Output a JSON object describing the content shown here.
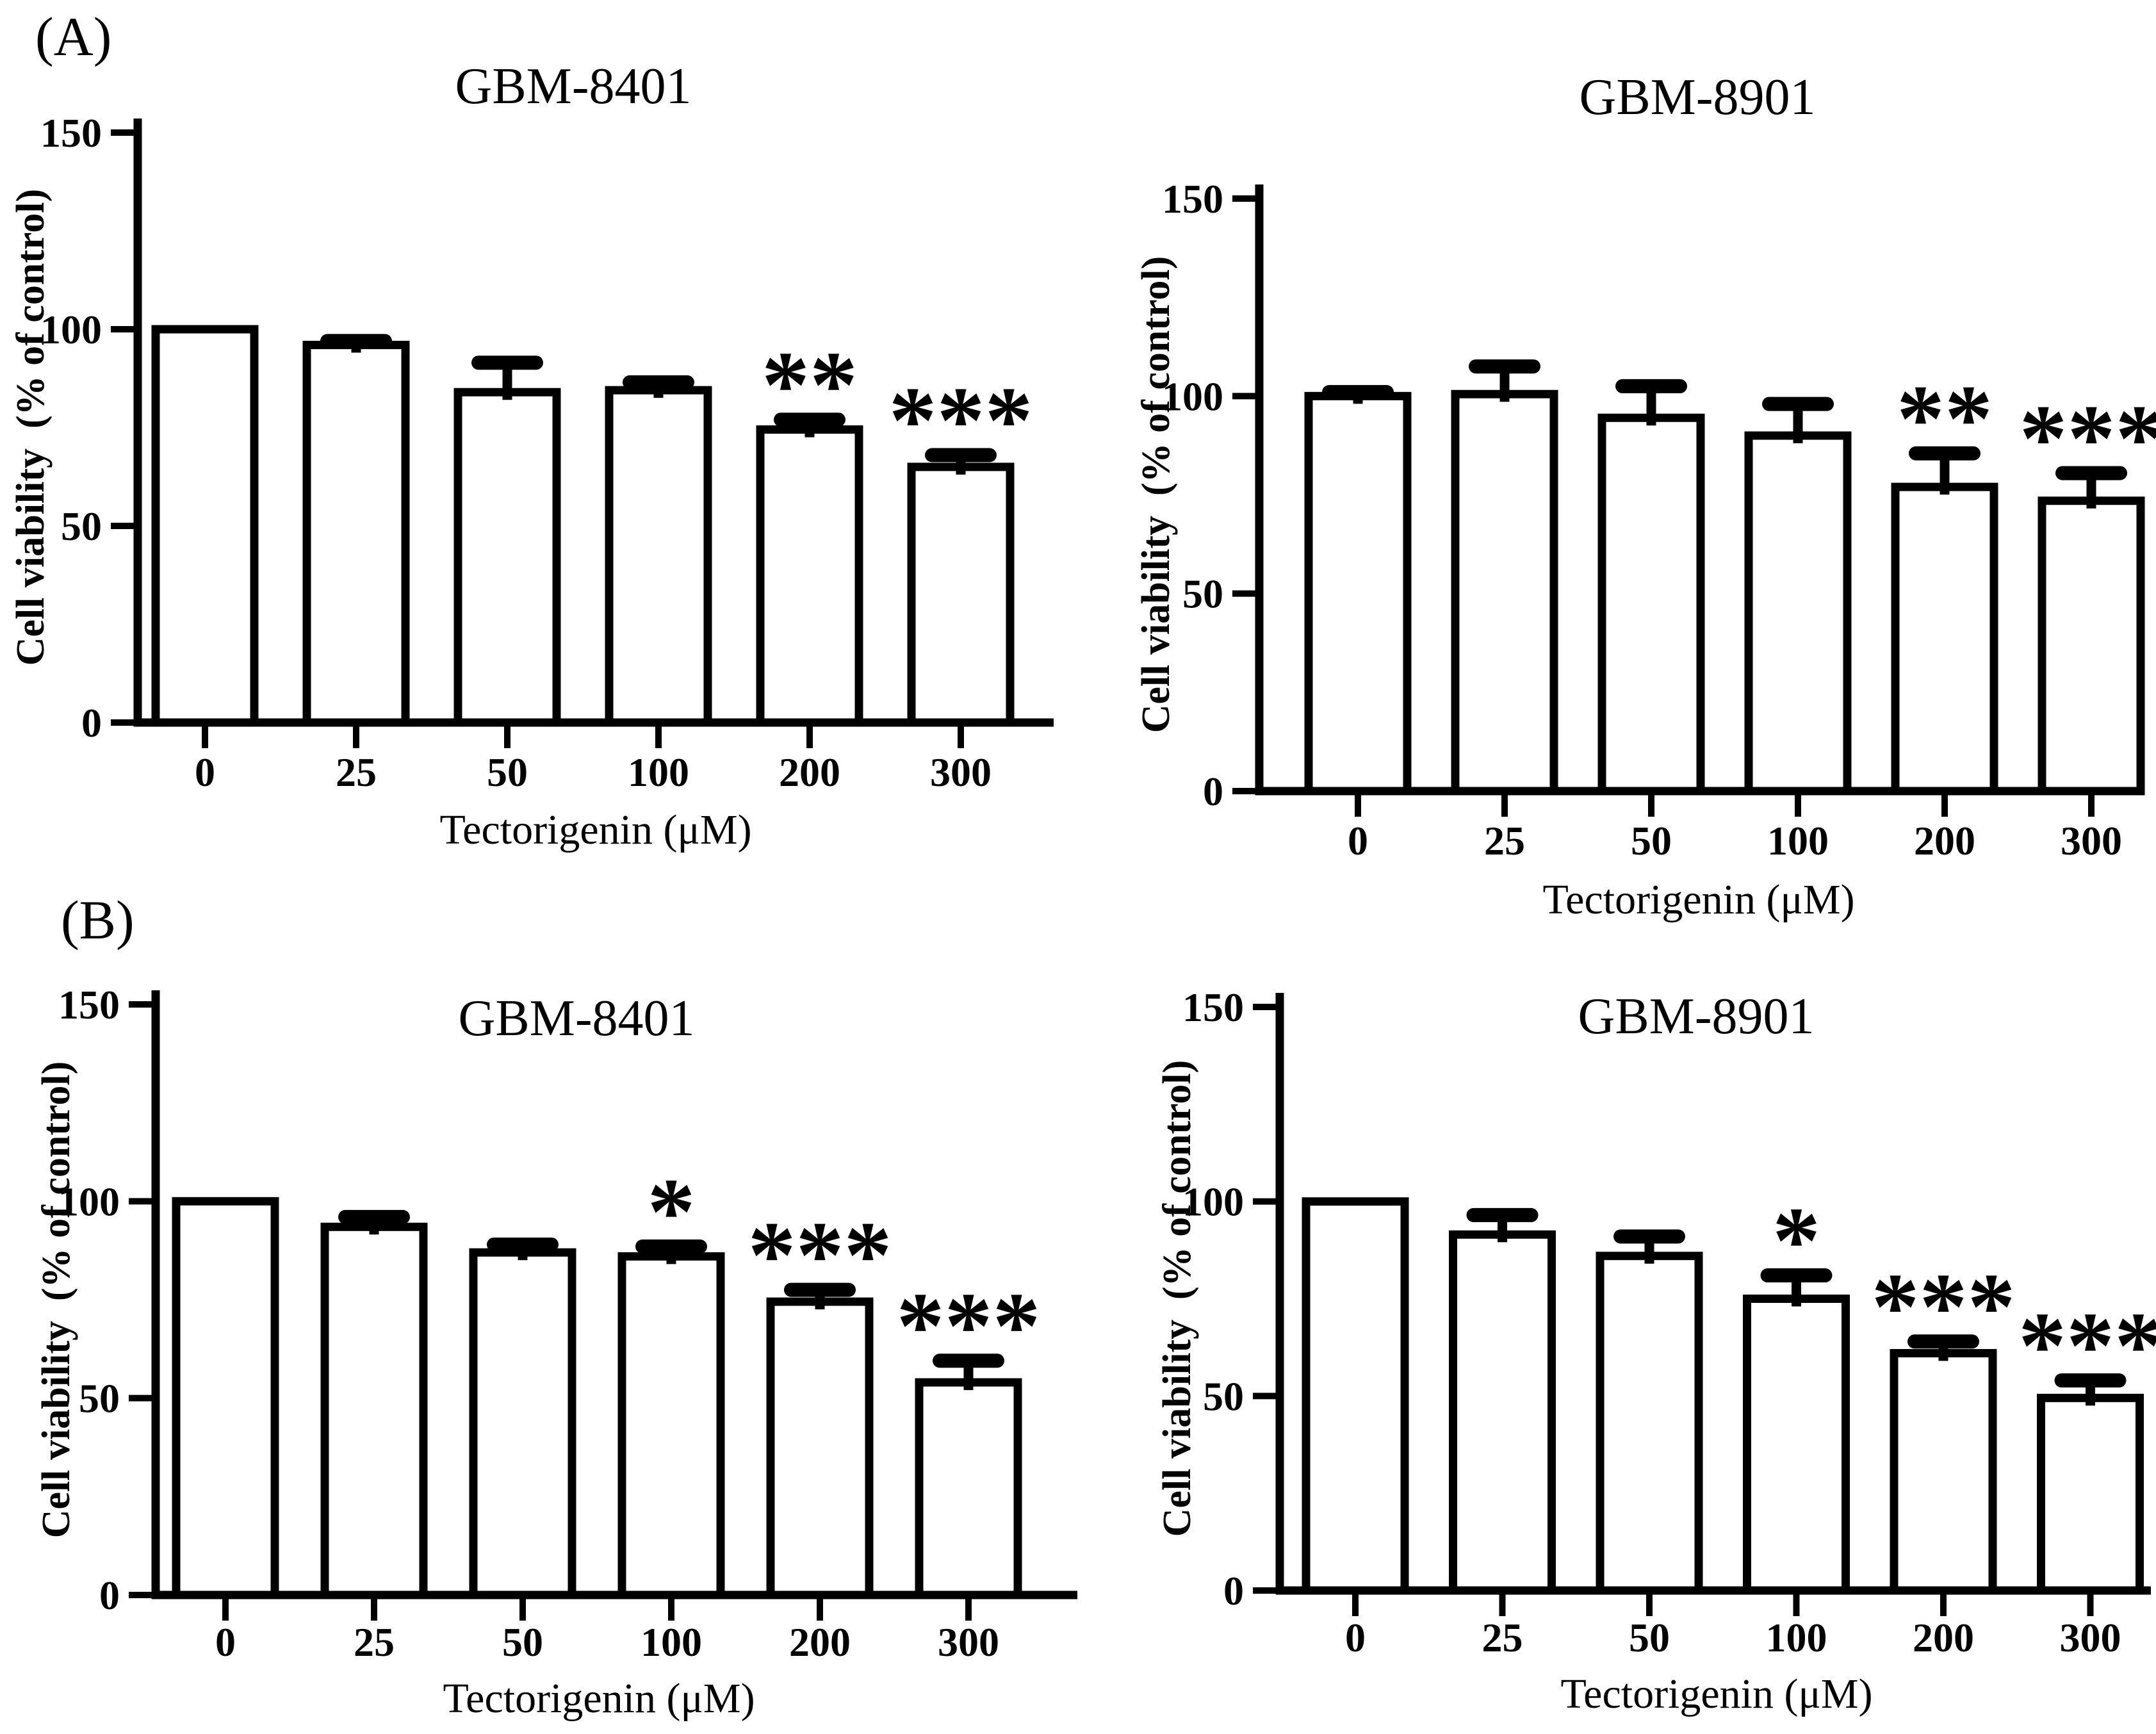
{
  "figure": {
    "background": "#ffffff",
    "ink_color": "#000000"
  },
  "panels": [
    {
      "label": "(A)"
    },
    {
      "label": "(B)"
    }
  ],
  "chart_data": [
    {
      "type": "bar",
      "panel": "A",
      "title": "GBM-8401",
      "xlabel": "Tectorigenin (μM)",
      "ylabel": "Cell viability  (% of control)",
      "categories": [
        "0",
        "25",
        "50",
        "100",
        "200",
        "300"
      ],
      "values": [
        100,
        96,
        84,
        84.5,
        74.5,
        65
      ],
      "errors": [
        0,
        1,
        7.5,
        2,
        2.5,
        3
      ],
      "significance": [
        "",
        "",
        "",
        "",
        "**",
        "***"
      ],
      "ylim": [
        0,
        150
      ],
      "yticks": [
        0,
        50,
        100,
        150
      ],
      "grid": false,
      "legend": "none",
      "bar_fill": "#ffffff",
      "bar_stroke": "#000000"
    },
    {
      "type": "bar",
      "panel": "A",
      "title": "GBM-8901",
      "xlabel": "Tectorigenin (μM)",
      "ylabel": "Cell viability  (% of control)",
      "categories": [
        "0",
        "25",
        "50",
        "100",
        "200",
        "300"
      ],
      "values": [
        100,
        100.5,
        94.5,
        90,
        77,
        73.5
      ],
      "errors": [
        1,
        7,
        8,
        8,
        8.5,
        7
      ],
      "significance": [
        "",
        "",
        "",
        "",
        "**",
        "***"
      ],
      "ylim": [
        0,
        150
      ],
      "yticks": [
        0,
        50,
        100,
        150
      ],
      "grid": false,
      "legend": "none",
      "bar_fill": "#ffffff",
      "bar_stroke": "#000000"
    },
    {
      "type": "bar",
      "panel": "B",
      "title": "GBM-8401",
      "xlabel": "Tectorigenin (μM)",
      "ylabel": "Cell viability  (% of control)",
      "categories": [
        "0",
        "25",
        "50",
        "100",
        "200",
        "300"
      ],
      "values": [
        100,
        93.5,
        87,
        86,
        74.5,
        54
      ],
      "errors": [
        0,
        2.5,
        2,
        2.5,
        3,
        5.5
      ],
      "significance": [
        "",
        "",
        "",
        "*",
        "***",
        "***"
      ],
      "ylim": [
        0,
        150
      ],
      "yticks": [
        0,
        50,
        100,
        150
      ],
      "grid": false,
      "legend": "none",
      "bar_fill": "#ffffff",
      "bar_stroke": "#000000"
    },
    {
      "type": "bar",
      "panel": "B",
      "title": "GBM-8901",
      "xlabel": "Tectorigenin (μM)",
      "ylabel": "Cell viability  (% of control)",
      "categories": [
        "0",
        "25",
        "50",
        "100",
        "200",
        "300"
      ],
      "values": [
        100,
        91.5,
        86,
        75,
        61,
        49.5
      ],
      "errors": [
        0,
        5,
        5,
        6,
        3,
        4.5
      ],
      "significance": [
        "",
        "",
        "",
        "*",
        "***",
        "***"
      ],
      "ylim": [
        0,
        150
      ],
      "yticks": [
        0,
        50,
        100,
        150
      ],
      "grid": false,
      "legend": "none",
      "bar_fill": "#ffffff",
      "bar_stroke": "#000000"
    }
  ]
}
